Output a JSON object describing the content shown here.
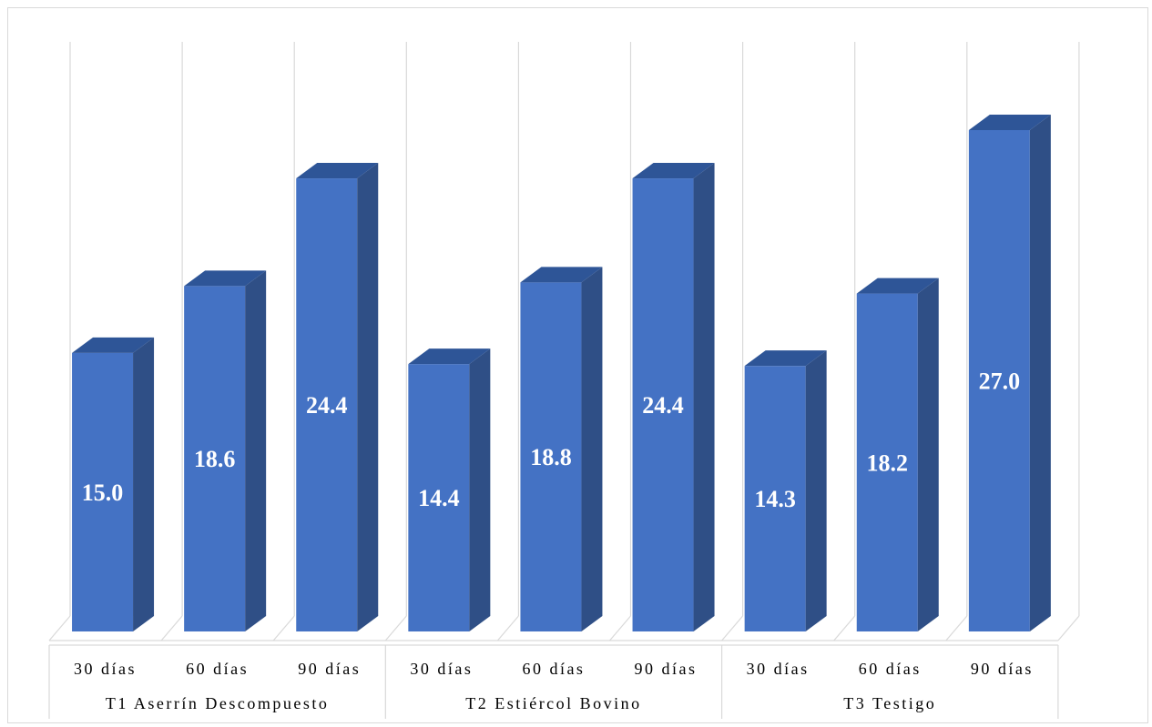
{
  "chart_data": {
    "type": "bar",
    "title": "",
    "xlabel": "",
    "ylabel": "",
    "ylim": [
      0,
      30
    ],
    "grid": true,
    "legend": "none",
    "style": "3d-column",
    "groups": [
      "T1 Aserrín Descompuesto",
      "T2 Estiércol Bovino",
      "T3 Testigo"
    ],
    "categories": [
      "30 días",
      "60 días",
      "90 días"
    ],
    "values": [
      [
        15.0,
        18.6,
        24.4
      ],
      [
        14.4,
        18.8,
        24.4
      ],
      [
        14.3,
        18.2,
        27.0
      ]
    ],
    "value_labels": [
      [
        "15.0",
        "18.6",
        "24.4"
      ],
      [
        "14.4",
        "18.8",
        "24.4"
      ],
      [
        "14.3",
        "18.2",
        "27.0"
      ]
    ],
    "colors": {
      "bar_front": "#4472c4",
      "bar_side": "#2f4f86",
      "bar_top": "#2e5597",
      "gridline": "#d9d9d9"
    }
  }
}
